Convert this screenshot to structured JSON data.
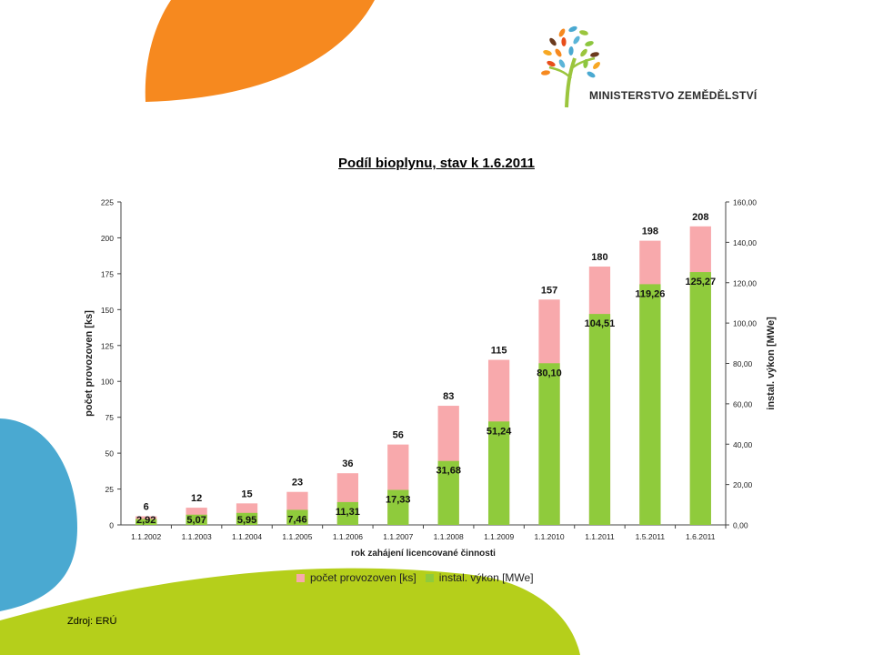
{
  "logo": {
    "text": "MINISTERSTVO ZEMĚDĚLSTVÍ"
  },
  "colors": {
    "orange": "#F6891F",
    "blue": "#4AA9D1",
    "green": "#B5CF1B",
    "pink": "#F8A9AC",
    "bar_green": "#8FCB3C"
  },
  "chart_data": {
    "type": "bar",
    "title": "Podíl bioplynu, stav k 1.6.2011",
    "xlabel": "rok zahájení licencované činnosti",
    "ylabel_left": "počet provozoven [ks]",
    "ylabel_right": "instal. výkon [MWe]",
    "categories": [
      "1.1.2002",
      "1.1.2003",
      "1.1.2004",
      "1.1.2005",
      "1.1.2006",
      "1.1.2007",
      "1.1.2008",
      "1.1.2009",
      "1.1.2010",
      "1.1.2011",
      "1.5.2011",
      "1.6.2011"
    ],
    "series": [
      {
        "name": "počet provozoven [ks]",
        "axis": "left",
        "values": [
          6,
          12,
          15,
          23,
          36,
          56,
          83,
          115,
          157,
          180,
          198,
          208
        ],
        "labels": [
          "6",
          "12",
          "15",
          "23",
          "36",
          "56",
          "83",
          "115",
          "157",
          "180",
          "198",
          "208"
        ]
      },
      {
        "name": "instal. výkon [MWe]",
        "axis": "right",
        "values": [
          2.92,
          5.07,
          5.95,
          7.46,
          11.31,
          17.33,
          31.68,
          51.24,
          80.1,
          104.51,
          119.26,
          125.27
        ],
        "labels": [
          "2,92",
          "5,07",
          "5,95",
          "7,46",
          "11,31",
          "17,33",
          "31,68",
          "51,24",
          "80,10",
          "104,51",
          "119,26",
          "125,27"
        ]
      }
    ],
    "ylim_left": [
      0,
      225
    ],
    "ylim_right": [
      0,
      160
    ],
    "yticks_left": [
      "0",
      "25",
      "50",
      "75",
      "100",
      "125",
      "150",
      "175",
      "200",
      "225"
    ],
    "yticks_right": [
      "0,00",
      "20,00",
      "40,00",
      "60,00",
      "80,00",
      "100,00",
      "120,00",
      "140,00",
      "160,00"
    ],
    "legend": "bottom"
  },
  "source": "Zdroj: ERÚ"
}
